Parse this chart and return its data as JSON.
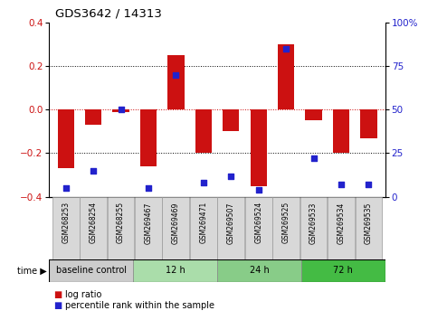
{
  "title": "GDS3642 / 14313",
  "samples": [
    "GSM268253",
    "GSM268254",
    "GSM268255",
    "GSM269467",
    "GSM269469",
    "GSM269471",
    "GSM269507",
    "GSM269524",
    "GSM269525",
    "GSM269533",
    "GSM269534",
    "GSM269535"
  ],
  "log_ratio": [
    -0.27,
    -0.07,
    -0.01,
    -0.26,
    0.25,
    -0.2,
    -0.1,
    -0.35,
    0.3,
    -0.05,
    -0.2,
    -0.13
  ],
  "percentile_rank": [
    5,
    15,
    50,
    5,
    70,
    8,
    12,
    4,
    85,
    22,
    7,
    7
  ],
  "bar_color": "#cc1111",
  "dot_color": "#2222cc",
  "ylim": [
    -0.4,
    0.4
  ],
  "y2lim": [
    0,
    100
  ],
  "yticks": [
    -0.4,
    -0.2,
    0.0,
    0.2,
    0.4
  ],
  "y2ticks": [
    0,
    25,
    50,
    75,
    100
  ],
  "hlines": [
    0.2,
    0.0,
    -0.2
  ],
  "hline_colors": [
    "black",
    "#cc0000",
    "black"
  ],
  "hline_styles": [
    "dotted",
    "dotted",
    "dotted"
  ],
  "groups": [
    {
      "label": "baseline control",
      "start": 0,
      "end": 3,
      "color": "#cccccc"
    },
    {
      "label": "12 h",
      "start": 3,
      "end": 6,
      "color": "#aaddaa"
    },
    {
      "label": "24 h",
      "start": 6,
      "end": 9,
      "color": "#88cc88"
    },
    {
      "label": "72 h",
      "start": 9,
      "end": 12,
      "color": "#44bb44"
    }
  ],
  "bg_color": "#ffffff",
  "plot_bg_color": "#ffffff"
}
